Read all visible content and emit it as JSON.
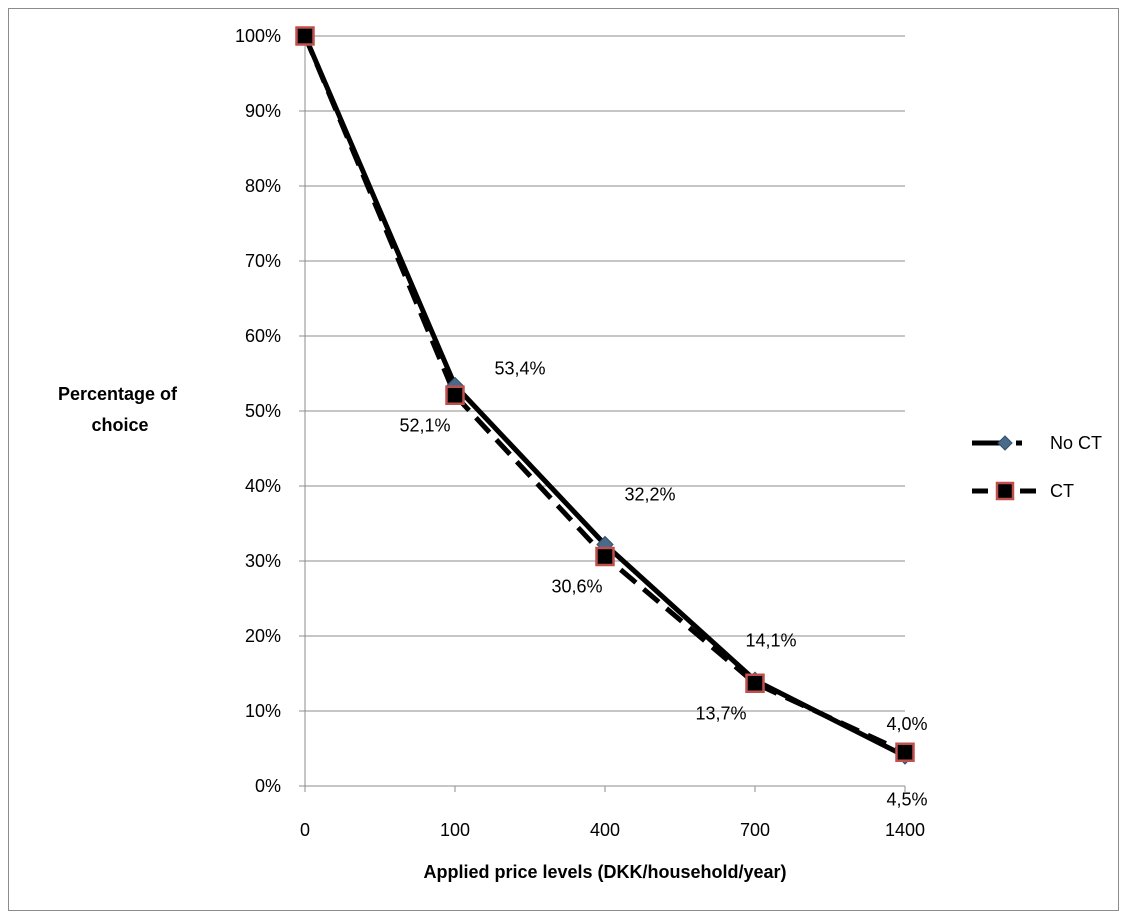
{
  "chart_data": {
    "type": "line",
    "title": "",
    "xlabel": "Applied price levels (DKK/household/year)",
    "ylabel_lines": [
      "Percentage of",
      "choice"
    ],
    "categories": [
      "0",
      "100",
      "400",
      "700",
      "1400"
    ],
    "y_ticks": [
      "0%",
      "10%",
      "20%",
      "30%",
      "40%",
      "50%",
      "60%",
      "70%",
      "80%",
      "90%",
      "100%"
    ],
    "ylim": [
      0,
      100
    ],
    "grid": true,
    "legend_position": "right",
    "series": [
      {
        "name": "No CT",
        "marker": "diamond",
        "line_style": "solid",
        "color": "#000000",
        "marker_color": "#4a6a8a",
        "values": [
          100,
          53.4,
          32.2,
          14.1,
          4.0
        ],
        "labels": [
          "",
          "53,4%",
          "32,2%",
          "14,1%",
          "4,0%"
        ]
      },
      {
        "name": "CT",
        "marker": "square",
        "line_style": "dashed",
        "color": "#000000",
        "marker_color": "#c0504d",
        "values": [
          100,
          52.1,
          30.6,
          13.7,
          4.5
        ],
        "labels": [
          "",
          "52,1%",
          "30,6%",
          "13,7%",
          "4,5%"
        ]
      }
    ]
  }
}
